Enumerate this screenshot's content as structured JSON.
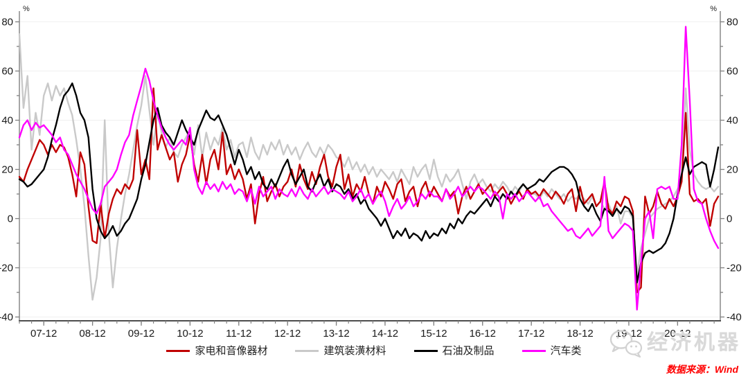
{
  "chart_data": {
    "type": "line",
    "title": "",
    "unit_label": "%",
    "grid": "horizontal-light",
    "legend_position": "bottom-center",
    "x_axis": {
      "start": "2007-06",
      "end": "2021-10",
      "frequency": "monthly",
      "minor_tick_every_months": 3,
      "major_tick_labels": [
        "07-12",
        "08-12",
        "09-12",
        "10-12",
        "11-12",
        "12-12",
        "13-12",
        "14-12",
        "15-12",
        "16-12",
        "17-12",
        "18-12",
        "19-12",
        "20-12"
      ],
      "major_tick_month_indices": [
        6,
        18,
        30,
        42,
        54,
        66,
        78,
        90,
        102,
        114,
        126,
        138,
        150,
        162
      ]
    },
    "y_axis": {
      "min": -40,
      "max": 80,
      "tick_step": 20,
      "minor_step": 10,
      "tick_labels": [
        "80",
        "60",
        "40",
        "20",
        "0",
        "-20",
        "-40"
      ],
      "unit": "%"
    },
    "series": [
      {
        "name": "家电和音像器材",
        "color": "#c00000",
        "values": [
          17,
          15,
          20,
          24,
          28,
          32,
          30,
          26,
          30,
          27,
          30,
          29,
          25,
          18,
          9,
          27,
          22,
          5,
          -9,
          -10,
          6,
          -8,
          2,
          8,
          12,
          10,
          14,
          12,
          16,
          36,
          18,
          24,
          16,
          53,
          28,
          34,
          29,
          24,
          27,
          15,
          22,
          26,
          34,
          22,
          15,
          26,
          14,
          24,
          28,
          20,
          35,
          18,
          22,
          16,
          20,
          16,
          8,
          14,
          -2,
          10,
          17,
          7,
          11,
          14,
          9,
          13,
          15,
          20,
          13,
          22,
          16,
          12,
          19,
          14,
          21,
          26,
          17,
          13,
          21,
          26,
          12,
          18,
          9,
          14,
          11,
          17,
          10,
          6,
          13,
          9,
          15,
          12,
          8,
          14,
          16,
          7,
          11,
          13,
          5,
          12,
          15,
          9,
          13,
          10,
          7,
          12,
          9,
          11,
          2,
          9,
          13,
          8,
          11,
          14,
          10,
          12,
          14,
          9,
          11,
          13,
          10,
          6,
          9,
          11,
          8,
          12,
          10,
          11,
          9,
          12,
          10,
          8,
          11,
          9,
          6,
          10,
          12,
          3,
          13,
          6,
          8,
          10,
          5,
          7,
          15,
          4,
          2,
          7,
          5,
          9,
          8,
          3,
          -30,
          -28,
          9,
          2,
          5,
          11,
          6,
          4,
          8,
          5,
          9,
          15,
          43,
          10,
          7,
          8,
          6,
          8,
          -3,
          6,
          9
        ]
      },
      {
        "name": "建筑装潢材料",
        "color": "#c9c9c9",
        "values": [
          75,
          45,
          58,
          28,
          43,
          34,
          50,
          55,
          48,
          54,
          50,
          53,
          47,
          42,
          32,
          20,
          5,
          -15,
          -33,
          -24,
          -8,
          40,
          -6,
          -28,
          -12,
          0,
          10,
          18,
          28,
          38,
          46,
          58,
          44,
          30,
          43,
          35,
          29,
          33,
          27,
          25,
          30,
          33,
          36,
          26,
          38,
          25,
          35,
          28,
          33,
          30,
          37,
          28,
          32,
          25,
          30,
          31,
          25,
          33,
          27,
          24,
          30,
          26,
          31,
          28,
          32,
          26,
          30,
          26,
          29,
          24,
          28,
          31,
          27,
          25,
          29,
          26,
          30,
          28,
          25,
          24,
          21,
          25,
          20,
          23,
          19,
          22,
          18,
          21,
          17,
          20,
          18,
          16,
          19,
          15,
          20,
          17,
          14,
          21,
          17,
          20,
          22,
          16,
          24,
          17,
          13,
          18,
          15,
          17,
          20,
          14,
          8,
          15,
          18,
          14,
          16,
          13,
          11,
          14,
          12,
          15,
          13,
          10,
          13,
          11,
          14,
          12,
          10,
          10,
          8,
          11,
          9,
          12,
          10,
          8,
          10,
          7,
          9,
          8,
          10,
          8,
          6,
          9,
          5,
          7,
          4,
          6,
          2,
          5,
          -2,
          3,
          3,
          0,
          -23,
          -12,
          -6,
          0,
          2,
          4,
          5,
          6,
          7,
          9,
          12,
          15,
          53,
          28,
          18,
          15,
          13,
          12,
          13,
          11,
          13
        ]
      },
      {
        "name": "石油及制品",
        "color": "#000000",
        "values": [
          16,
          15,
          13,
          14,
          16,
          18,
          20,
          25,
          32,
          38,
          45,
          50,
          52,
          55,
          50,
          43,
          40,
          33,
          12,
          0,
          -5,
          -8,
          -6,
          -3,
          -7,
          -5,
          -2,
          0,
          4,
          8,
          16,
          22,
          31,
          40,
          45,
          38,
          35,
          33,
          30,
          35,
          40,
          36,
          33,
          30,
          36,
          40,
          44,
          41,
          40,
          42,
          38,
          34,
          28,
          22,
          28,
          24,
          18,
          21,
          16,
          19,
          14,
          12,
          16,
          13,
          17,
          21,
          24,
          18,
          14,
          17,
          20,
          13,
          11,
          15,
          18,
          13,
          16,
          11,
          14,
          13,
          10,
          12,
          8,
          10,
          6,
          8,
          4,
          2,
          0,
          -3,
          0,
          -4,
          -8,
          -5,
          -7,
          -4,
          -8,
          -6,
          -7,
          -9,
          -5,
          -8,
          -6,
          -7,
          -4,
          -6,
          -2,
          -4,
          0,
          -2,
          1,
          3,
          2,
          4,
          6,
          8,
          5,
          9,
          7,
          10,
          8,
          11,
          9,
          12,
          14,
          12,
          13,
          14,
          16,
          15,
          17,
          19,
          20,
          21,
          21,
          20,
          18,
          15,
          8,
          5,
          3,
          6,
          2,
          -1,
          4,
          3,
          1,
          4,
          2,
          5,
          4,
          1,
          -26,
          -18,
          -14,
          -13,
          -14,
          -13,
          -12,
          -10,
          -6,
          0,
          10,
          18,
          25,
          18,
          21,
          22,
          23,
          22,
          13,
          20,
          29
        ]
      },
      {
        "name": "汽车类",
        "color": "#ff00ff",
        "values": [
          33,
          38,
          40,
          36,
          39,
          37,
          38,
          36,
          34,
          31,
          33,
          28,
          26,
          22,
          18,
          15,
          12,
          8,
          4,
          2,
          6,
          13,
          15,
          17,
          20,
          26,
          31,
          34,
          42,
          48,
          54,
          61,
          56,
          48,
          42,
          37,
          33,
          30,
          28,
          30,
          32,
          30,
          37,
          20,
          13,
          10,
          15,
          12,
          14,
          11,
          15,
          12,
          14,
          10,
          12,
          11,
          7,
          12,
          6,
          13,
          9,
          11,
          13,
          8,
          12,
          10,
          9,
          12,
          9,
          13,
          10,
          8,
          12,
          9,
          11,
          13,
          10,
          12,
          11,
          10,
          8,
          11,
          7,
          9,
          12,
          8,
          10,
          6,
          9,
          11,
          7,
          1,
          5,
          8,
          4,
          6,
          9,
          5,
          7,
          10,
          8,
          11,
          9,
          9,
          7,
          12,
          8,
          10,
          13,
          9,
          11,
          13,
          11,
          13,
          12,
          10,
          8,
          11,
          9,
          0,
          10,
          8,
          10,
          7,
          9,
          11,
          9,
          7,
          9,
          5,
          6,
          3,
          1,
          -1,
          -3,
          -5,
          -4,
          -7,
          -8,
          -6,
          -4,
          -7,
          -5,
          -3,
          17,
          -5,
          -8,
          -6,
          -4,
          -2,
          -3,
          -5,
          -37,
          -18,
          0,
          3,
          -8,
          12,
          13,
          12,
          13,
          8,
          8,
          30,
          78,
          48,
          12,
          7,
          6,
          0,
          -5,
          -9,
          -12
        ]
      }
    ]
  },
  "watermark": {
    "text": "经济机器",
    "logo": "wechat-icon"
  },
  "source": {
    "text": "数据来源：Wind"
  }
}
